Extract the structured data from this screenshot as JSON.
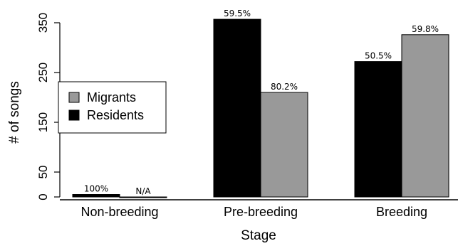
{
  "chart_data": {
    "type": "bar",
    "title": "",
    "xlabel": "Stage",
    "ylabel": "# of songs",
    "ylim": [
      0,
      370
    ],
    "yticks": [
      0,
      50,
      150,
      250,
      350
    ],
    "grid": false,
    "legend_position": "left",
    "categories": [
      "Non-breeding",
      "Pre-breeding",
      "Breeding"
    ],
    "series": [
      {
        "name": "Residents",
        "color": "#000000",
        "values": [
          5,
          357,
          272
        ],
        "labels": [
          "100%",
          "59.5%",
          "50.5%"
        ]
      },
      {
        "name": "Migrants",
        "color": "#999999",
        "values": [
          0,
          210,
          326
        ],
        "labels": [
          "N/A",
          "80.2%",
          "59.8%"
        ]
      }
    ],
    "legend_order": [
      "Migrants",
      "Residents"
    ]
  }
}
